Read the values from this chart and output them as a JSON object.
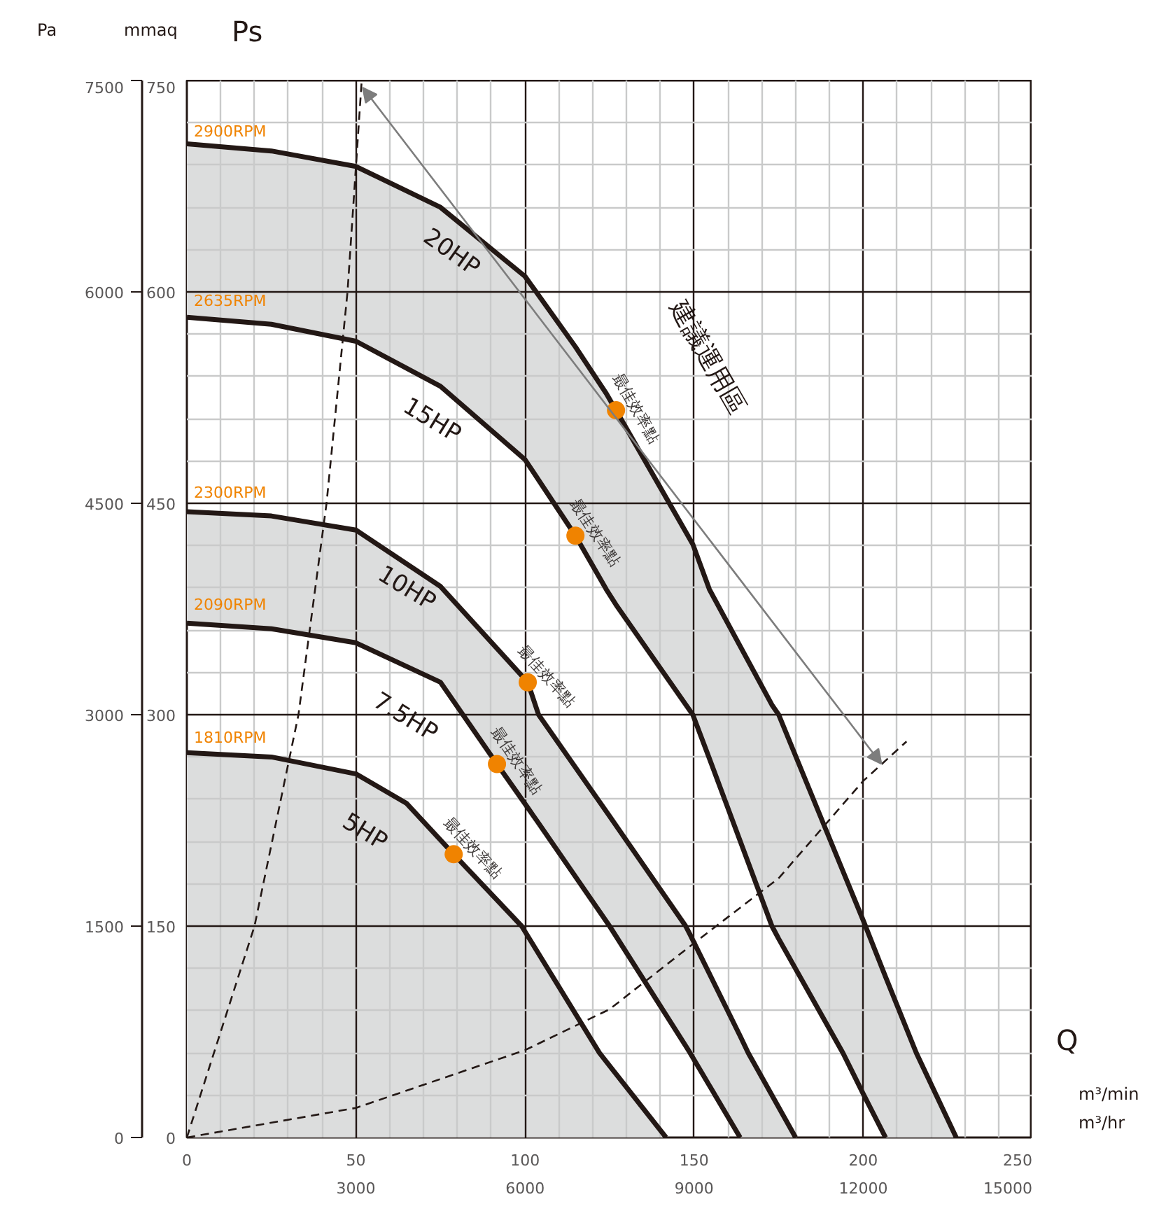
{
  "chart_data": {
    "type": "line",
    "xlabel": "m³/min",
    "x2label": "m³/hr",
    "ylabel": "mmaq",
    "y2label": "Pa",
    "xlim": [
      0,
      250
    ],
    "xticks": [
      0,
      50,
      100,
      150,
      200,
      250
    ],
    "x2lim": [
      0,
      15000
    ],
    "x2ticks": [
      3000,
      6000,
      9000,
      12000,
      15000
    ],
    "ylim": [
      0,
      750
    ],
    "yticks": [
      0,
      150,
      300,
      450,
      600,
      750
    ],
    "y2lim": [
      0,
      7500
    ],
    "y2ticks": [
      0,
      1500,
      3000,
      4500,
      6000,
      7500
    ],
    "grid": true,
    "line_style": "solid",
    "series": [
      {
        "color": "#231815",
        "x": [
          0,
          25,
          50,
          75,
          100,
          114.9,
          124,
          126.9,
          149.6,
          154.5,
          173,
          175,
          194,
          200,
          206.6,
          215.7,
          227.5
        ],
        "values": [
          705,
          700,
          689,
          660,
          611,
          561,
          528,
          516,
          421,
          389,
          307,
          300,
          189,
          154,
          114,
          60,
          0
        ]
      },
      {
        "color": "#231815",
        "x": [
          0,
          25,
          50,
          75,
          100,
          114.9,
          124,
          126.9,
          149.6,
          154.5,
          173,
          175,
          194,
          200,
          206.6
        ],
        "values": [
          582,
          577,
          565,
          533,
          481,
          427,
          389,
          378,
          300,
          269,
          150,
          141,
          60,
          31,
          0
        ]
      },
      {
        "color": "#231815",
        "x": [
          0,
          25,
          50,
          75,
          91.7,
          100.8,
          104,
          125,
          147.5,
          148.8,
          163.6,
          166,
          180
        ],
        "values": [
          444,
          441,
          431,
          391,
          347,
          323,
          300,
          228,
          150,
          144,
          72,
          60,
          0
        ]
      },
      {
        "color": "#231815",
        "x": [
          0,
          25,
          50,
          75,
          91.7,
          100.8,
          104,
          125,
          147.5,
          148.8,
          163.6
        ],
        "values": [
          365,
          361,
          351,
          323,
          265,
          234,
          223,
          150,
          65,
          60,
          0
        ]
      },
      {
        "color": "#231815",
        "x": [
          0,
          25,
          50,
          65,
          78.9,
          99,
          122,
          141.7
        ],
        "values": [
          273,
          270,
          258,
          237,
          201,
          150,
          60,
          0
        ]
      },
      {
        "color": "#231815",
        "line_style": "dashed",
        "x": [
          0,
          20,
          33,
          41.3,
          47.5,
          51.7
        ],
        "values": [
          0,
          150,
          300,
          450,
          600,
          750
        ]
      },
      {
        "color": "#231815",
        "line_style": "dashed",
        "x": [
          0,
          50,
          100,
          125,
          150,
          175,
          200,
          212.8
        ],
        "values": [
          0,
          21,
          62,
          91,
          138,
          184,
          253,
          281
        ]
      },
      {
        "type": "scatter",
        "marker": "circle",
        "color": "#f08300",
        "x": [
          126.9,
          114.9,
          100.8,
          91.7,
          78.9
        ],
        "values": [
          516,
          427,
          323,
          265,
          201
        ],
        "value_labels": [
          "最佳效率點",
          "最佳效率點",
          "最佳效率點",
          "最佳效率點",
          "最佳效率點"
        ]
      }
    ],
    "annotations": [
      "Ps",
      "Q",
      "20HP",
      "15HP",
      "10HP",
      "7.5HP",
      "5HP",
      "建議運用區",
      "2900RPM",
      "2635RPM",
      "2300RPM",
      "2090RPM",
      "1810RPM"
    ]
  }
}
